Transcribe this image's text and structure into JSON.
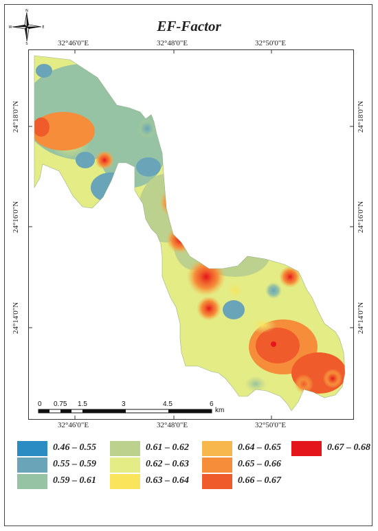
{
  "title": "EF-Factor",
  "north_arrow": {
    "icon": "compass-rose-icon",
    "n": "N",
    "s": "S",
    "e": "E",
    "w": "W"
  },
  "graticule": {
    "lon_labels": [
      "32°46'0\"E",
      "32°48'0\"E",
      "32°50'0\"E"
    ],
    "lat_labels": [
      "24°18'0\"N",
      "24°16'0\"N",
      "24°14'0\"N"
    ]
  },
  "scale_bar": {
    "labels": [
      "0",
      "0.75",
      "1.5",
      "3",
      "4.5",
      "6"
    ],
    "unit": "km"
  },
  "legend": [
    {
      "label": "0.46 – 0.55",
      "color": "#2b8cc4"
    },
    {
      "label": "0.55 – 0.59",
      "color": "#6aa4b8"
    },
    {
      "label": "0.59 – 0.61",
      "color": "#95c3a3"
    },
    {
      "label": "0.61 – 0.62",
      "color": "#bcd18e"
    },
    {
      "label": "0.62 – 0.63",
      "color": "#e3ec85"
    },
    {
      "label": "0.63 – 0.64",
      "color": "#f9e45b"
    },
    {
      "label": "0.64 – 0.65",
      "color": "#f7b74c"
    },
    {
      "label": "0.65 – 0.66",
      "color": "#f68d3a"
    },
    {
      "label": "0.66 – 0.67",
      "color": "#ef5b2a"
    },
    {
      "label": "0.67 – 0.68",
      "color": "#e5161b"
    }
  ]
}
